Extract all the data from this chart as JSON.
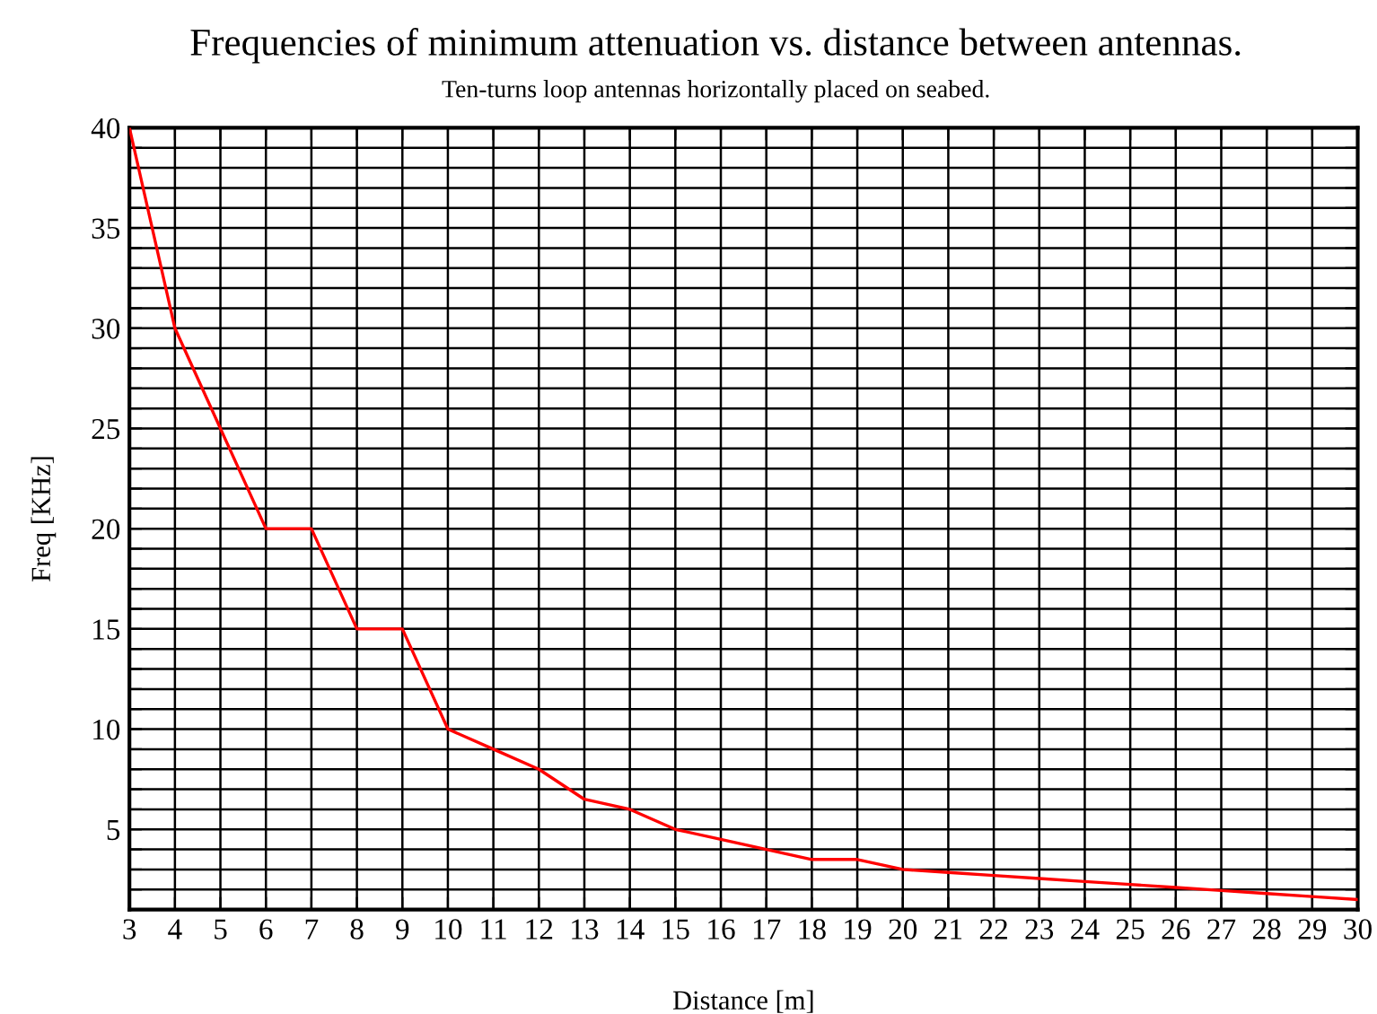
{
  "chart_data": {
    "type": "line",
    "title": "Frequencies of minimum attenuation vs. distance between antennas.",
    "subtitle": "Ten-turns loop antennas horizontally placed on seabed.",
    "xlabel": "Distance [m]",
    "ylabel": "Freq [KHz]",
    "x": [
      3,
      4,
      5,
      6,
      7,
      8,
      9,
      10,
      11,
      12,
      13,
      14,
      15,
      16,
      17,
      18,
      19,
      20,
      21,
      22,
      23,
      24,
      25,
      26,
      27,
      28,
      29,
      30
    ],
    "series": [
      {
        "color": "#ff0000",
        "values": [
          40,
          30,
          25,
          20,
          20,
          15,
          15,
          10,
          9,
          8,
          6.5,
          6,
          5,
          4.5,
          4,
          3.5,
          3.5,
          3,
          2.85,
          2.7,
          2.55,
          2.4,
          2.25,
          2.1,
          1.95,
          1.8,
          1.65,
          1.5
        ]
      }
    ],
    "xlim": [
      3,
      30
    ],
    "ylim": [
      1,
      40
    ],
    "xticks": [
      3,
      4,
      5,
      6,
      7,
      8,
      9,
      10,
      11,
      12,
      13,
      14,
      15,
      16,
      17,
      18,
      19,
      20,
      21,
      22,
      23,
      24,
      25,
      26,
      27,
      28,
      29,
      30
    ],
    "yticks": [
      {
        "value": 2,
        "label": null
      },
      {
        "value": 3,
        "label": null
      },
      {
        "value": 4,
        "label": null
      },
      5,
      {
        "value": 6,
        "label": null
      },
      {
        "value": 7,
        "label": null
      },
      {
        "value": 8,
        "label": null
      },
      {
        "value": 9,
        "label": null
      },
      10,
      {
        "value": 11,
        "label": null
      },
      {
        "value": 12,
        "label": null
      },
      {
        "value": 13,
        "label": null
      },
      {
        "value": 14,
        "label": null
      },
      15,
      {
        "value": 16,
        "label": null
      },
      {
        "value": 17,
        "label": null
      },
      {
        "value": 18,
        "label": null
      },
      {
        "value": 19,
        "label": null
      },
      20,
      {
        "value": 21,
        "label": null
      },
      {
        "value": 22,
        "label": null
      },
      {
        "value": 23,
        "label": null
      },
      {
        "value": 24,
        "label": null
      },
      25,
      {
        "value": 26,
        "label": null
      },
      {
        "value": 27,
        "label": null
      },
      {
        "value": 28,
        "label": null
      },
      {
        "value": 29,
        "label": null
      },
      30,
      {
        "value": 31,
        "label": null
      },
      {
        "value": 32,
        "label": null
      },
      {
        "value": 33,
        "label": null
      },
      {
        "value": 34,
        "label": null
      },
      35,
      {
        "value": 36,
        "label": null
      },
      {
        "value": 37,
        "label": null
      },
      {
        "value": 38,
        "label": null
      },
      {
        "value": 39,
        "label": null
      },
      40
    ],
    "grid": true,
    "marker": "none",
    "line_style": "solid"
  }
}
